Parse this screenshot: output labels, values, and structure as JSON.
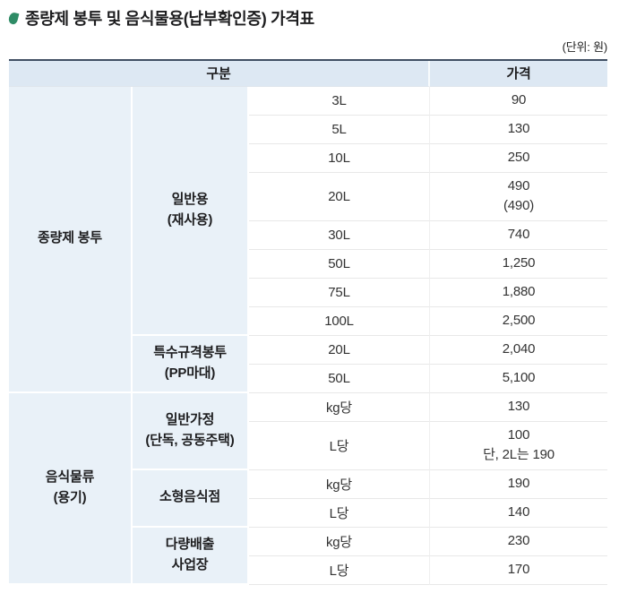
{
  "page": {
    "title": "종량제 봉투 및 음식물용(납부확인증) 가격표",
    "unit_note": "(단위: 원)",
    "icons": {
      "title_bullet": "leaf-icon"
    },
    "colors": {
      "leaf_green": "#2f8c66",
      "table_top_border": "#404f63",
      "header_bg": "#dde8f3",
      "label_bg": "#e9f1f8",
      "row_border": "#e8e8e8"
    }
  },
  "table": {
    "header": {
      "category_label": "구분",
      "price_label": "가격"
    },
    "groups": [
      {
        "label": "종량제 봉투",
        "subgroups": [
          {
            "label": "일반용\n(재사용)",
            "rows": [
              {
                "size": "3L",
                "price": "90"
              },
              {
                "size": "5L",
                "price": "130"
              },
              {
                "size": "10L",
                "price": "250"
              },
              {
                "size": "20L",
                "price": "490\n(490)",
                "tall": true
              },
              {
                "size": "30L",
                "price": "740"
              },
              {
                "size": "50L",
                "price": "1,250"
              },
              {
                "size": "75L",
                "price": "1,880"
              },
              {
                "size": "100L",
                "price": "2,500"
              }
            ]
          },
          {
            "label": "특수규격봉투\n(PP마대)",
            "rows": [
              {
                "size": "20L",
                "price": "2,040"
              },
              {
                "size": "50L",
                "price": "5,100"
              }
            ]
          }
        ]
      },
      {
        "label": "음식물류\n(용기)",
        "subgroups": [
          {
            "label": "일반가정\n(단독, 공동주택)",
            "rows": [
              {
                "size": "kg당",
                "price": "130"
              },
              {
                "size": "L당",
                "price": "100\n단, 2L는 190",
                "tall": true
              }
            ]
          },
          {
            "label": "소형음식점",
            "rows": [
              {
                "size": "kg당",
                "price": "190"
              },
              {
                "size": "L당",
                "price": "140"
              }
            ]
          },
          {
            "label": "다량배출\n사업장",
            "rows": [
              {
                "size": "kg당",
                "price": "230"
              },
              {
                "size": "L당",
                "price": "170"
              }
            ]
          }
        ]
      }
    ]
  }
}
